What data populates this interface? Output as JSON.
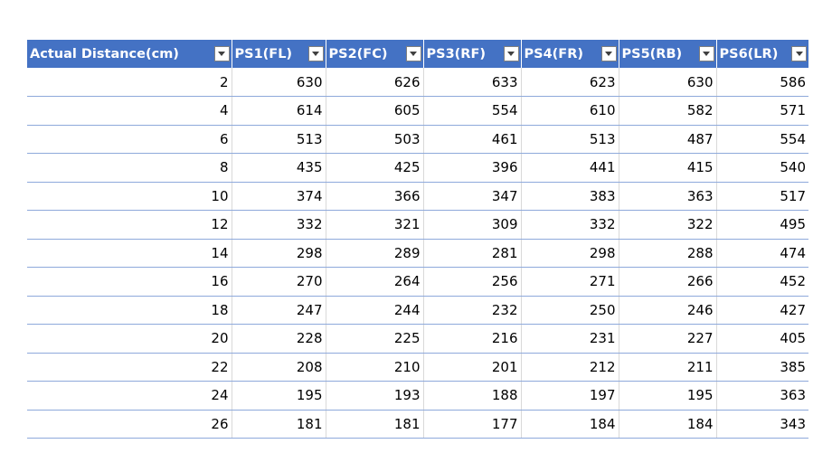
{
  "table": {
    "headers": [
      "Actual Distance(cm)",
      "PS1(FL)",
      "PS2(FC)",
      "PS3(RF)",
      "PS4(FR)",
      "PS5(RB)",
      "PS6(LR)"
    ],
    "rows": [
      [
        "2",
        "630",
        "626",
        "633",
        "623",
        "630",
        "586"
      ],
      [
        "4",
        "614",
        "605",
        "554",
        "610",
        "582",
        "571"
      ],
      [
        "6",
        "513",
        "503",
        "461",
        "513",
        "487",
        "554"
      ],
      [
        "8",
        "435",
        "425",
        "396",
        "441",
        "415",
        "540"
      ],
      [
        "10",
        "374",
        "366",
        "347",
        "383",
        "363",
        "517"
      ],
      [
        "12",
        "332",
        "321",
        "309",
        "332",
        "322",
        "495"
      ],
      [
        "14",
        "298",
        "289",
        "281",
        "298",
        "288",
        "474"
      ],
      [
        "16",
        "270",
        "264",
        "256",
        "271",
        "266",
        "452"
      ],
      [
        "18",
        "247",
        "244",
        "232",
        "250",
        "246",
        "427"
      ],
      [
        "20",
        "228",
        "225",
        "216",
        "231",
        "227",
        "405"
      ],
      [
        "22",
        "208",
        "210",
        "201",
        "212",
        "211",
        "385"
      ],
      [
        "24",
        "195",
        "193",
        "188",
        "197",
        "195",
        "363"
      ],
      [
        "26",
        "181",
        "181",
        "177",
        "184",
        "184",
        "343"
      ]
    ]
  },
  "colors": {
    "header_bg": "#4472c4",
    "header_text": "#ffffff",
    "row_border": "#8ea9db"
  },
  "icons": {
    "filter": "filter-dropdown-icon"
  }
}
